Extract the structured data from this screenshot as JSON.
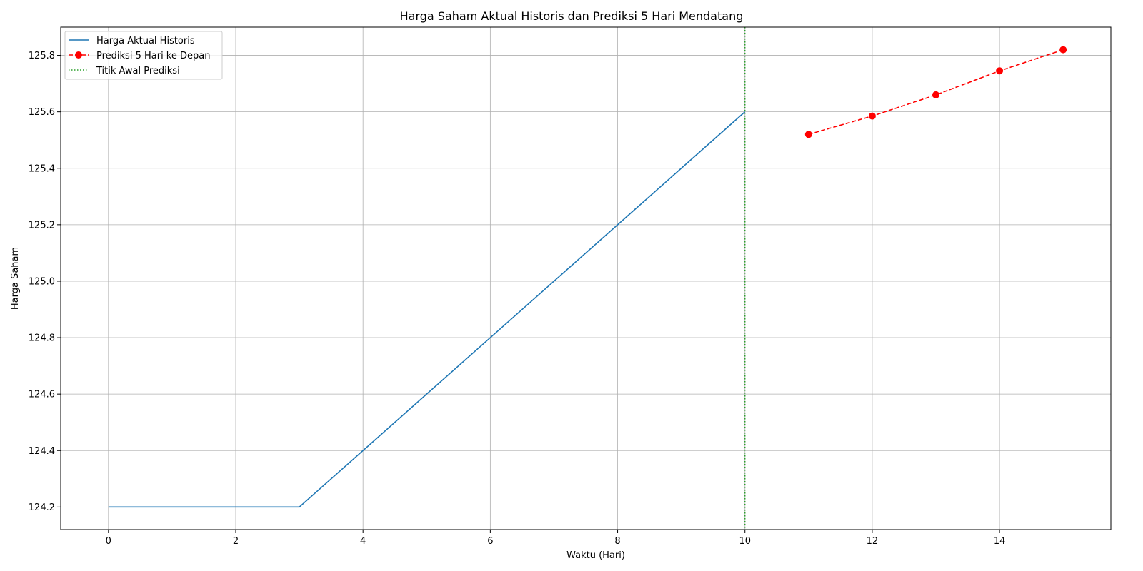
{
  "chart_data": {
    "type": "line",
    "title": "Harga Saham Aktual Historis dan Prediksi 5 Hari Mendatang",
    "xlabel": "Waktu (Hari)",
    "ylabel": "Harga Saham",
    "xlim": [
      -0.75,
      15.75
    ],
    "ylim": [
      124.12,
      125.9
    ],
    "xticks": [
      0,
      2,
      4,
      6,
      8,
      10,
      12,
      14
    ],
    "yticks": [
      124.2,
      124.4,
      124.6,
      124.8,
      125.0,
      125.2,
      125.4,
      125.6,
      125.8
    ],
    "xtick_labels": [
      "0",
      "2",
      "4",
      "6",
      "8",
      "10",
      "12",
      "14"
    ],
    "ytick_labels": [
      "124.2",
      "124.4",
      "124.6",
      "124.8",
      "125.0",
      "125.2",
      "125.4",
      "125.6",
      "125.8"
    ],
    "grid": true,
    "legend": "upper-left",
    "series": [
      {
        "name": "Harga Aktual Historis",
        "style": "solid",
        "color": "#1f77b4",
        "x": [
          0,
          1,
          2,
          3,
          4,
          5,
          6,
          7,
          8,
          9,
          10
        ],
        "y": [
          124.2,
          124.2,
          124.2,
          124.2,
          124.4,
          124.6,
          124.8,
          125.0,
          125.2,
          125.4,
          125.6
        ]
      },
      {
        "name": "Prediksi 5 Hari ke Depan",
        "style": "dashed",
        "marker": "circle",
        "color": "#ff0000",
        "x": [
          11,
          12,
          13,
          14,
          15
        ],
        "y": [
          125.52,
          125.585,
          125.66,
          125.745,
          125.82
        ]
      }
    ],
    "vline": {
      "name": "Titik Awal Prediksi",
      "x": 10,
      "style": "dotted",
      "color": "#2ca02c"
    }
  }
}
